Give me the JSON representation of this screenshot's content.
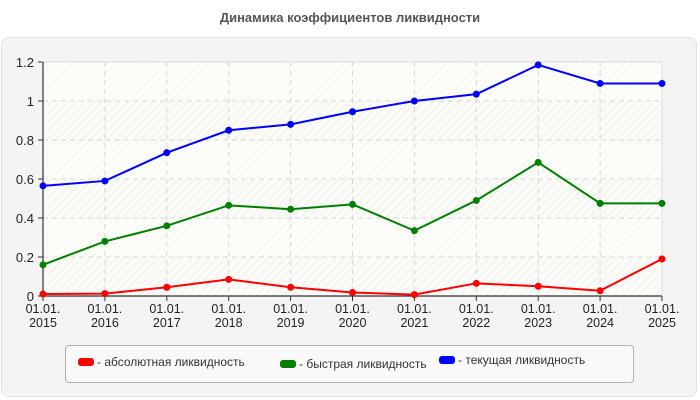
{
  "title": "Динамика коэффициентов ликвидности",
  "legend": [
    {
      "label": "- абсолютная ликвидность",
      "color": "#ff0000"
    },
    {
      "label": "- быстрая ликвидность",
      "color": "#008000"
    },
    {
      "label": "- текущая ликвидность",
      "color": "#0000ff"
    }
  ],
  "chart_data": {
    "type": "line",
    "title": "Динамика коэффициентов ликвидности",
    "xlabel": "",
    "ylabel": "",
    "ylim": [
      0,
      1.2
    ],
    "yticks": [
      "0",
      "0.2",
      "0.4",
      "0.6",
      "0.8",
      "1",
      "1.2"
    ],
    "categories": [
      "01.01.\n2015",
      "01.01.\n2016",
      "01.01.\n2017",
      "01.01.\n2018",
      "01.01.\n2019",
      "01.01.\n2020",
      "01.01.\n2021",
      "01.01.\n2022",
      "01.01.\n2023",
      "01.01.\n2024",
      "01.01.\n2025"
    ],
    "grid": true,
    "legend_position": "bottom",
    "series": [
      {
        "name": "абсолютная ликвидность",
        "color": "#ff0000",
        "values": [
          0.01,
          0.012,
          0.045,
          0.085,
          0.045,
          0.018,
          0.007,
          0.065,
          0.05,
          0.027,
          0.19
        ]
      },
      {
        "name": "быстрая ликвидность",
        "color": "#008000",
        "values": [
          0.16,
          0.28,
          0.36,
          0.465,
          0.445,
          0.47,
          0.335,
          0.49,
          0.685,
          0.475,
          0.475
        ]
      },
      {
        "name": "текущая ликвидность",
        "color": "#0000ff",
        "values": [
          0.565,
          0.59,
          0.735,
          0.85,
          0.88,
          0.945,
          1.0,
          1.035,
          1.185,
          1.09,
          1.09
        ]
      }
    ]
  }
}
